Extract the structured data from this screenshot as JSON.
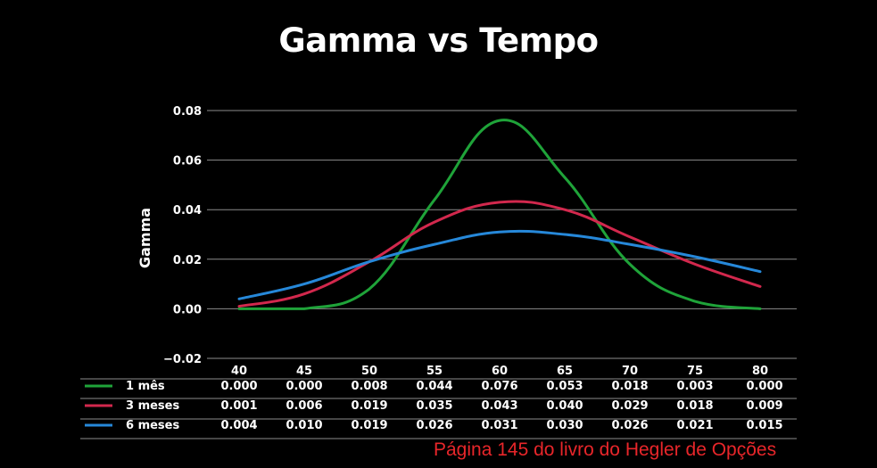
{
  "chart_data": {
    "type": "line",
    "title": "Gamma vs Tempo",
    "ylabel": "Gamma",
    "xlabel": "",
    "categories": [
      "40",
      "45",
      "50",
      "55",
      "60",
      "65",
      "70",
      "75",
      "80"
    ],
    "y_ticks": [
      "0.08",
      "0.06",
      "0.04",
      "0.02",
      "0.00",
      "−0.02"
    ],
    "ylim": [
      -0.02,
      0.08
    ],
    "grid": true,
    "legend_placement": "data table below the chart",
    "series": [
      {
        "name": "1 mês",
        "color": "#1fa339",
        "values": [
          0.0,
          0.0,
          0.008,
          0.044,
          0.076,
          0.053,
          0.018,
          0.003,
          0.0
        ],
        "table_values": [
          "0.000",
          "0.000",
          "0.008",
          "0.044",
          "0.076",
          "0.053",
          "0.018",
          "0.003",
          "0.000"
        ]
      },
      {
        "name": "3 meses",
        "color": "#d2284d",
        "values": [
          0.001,
          0.006,
          0.019,
          0.035,
          0.043,
          0.04,
          0.029,
          0.018,
          0.009
        ],
        "table_values": [
          "0.001",
          "0.006",
          "0.019",
          "0.035",
          "0.043",
          "0.040",
          "0.029",
          "0.018",
          "0.009"
        ]
      },
      {
        "name": "6 meses",
        "color": "#2688d9",
        "values": [
          0.004,
          0.01,
          0.019,
          0.026,
          0.031,
          0.03,
          0.026,
          0.021,
          0.015
        ],
        "table_values": [
          "0.004",
          "0.010",
          "0.019",
          "0.026",
          "0.031",
          "0.030",
          "0.026",
          "0.021",
          "0.015"
        ]
      }
    ]
  },
  "source_note": "Página 145 do livro do Hegler de Opções",
  "colors": {
    "background": "#000000",
    "text": "#ffffff",
    "grid": "#8c8c8c",
    "note": "#e8262a"
  }
}
